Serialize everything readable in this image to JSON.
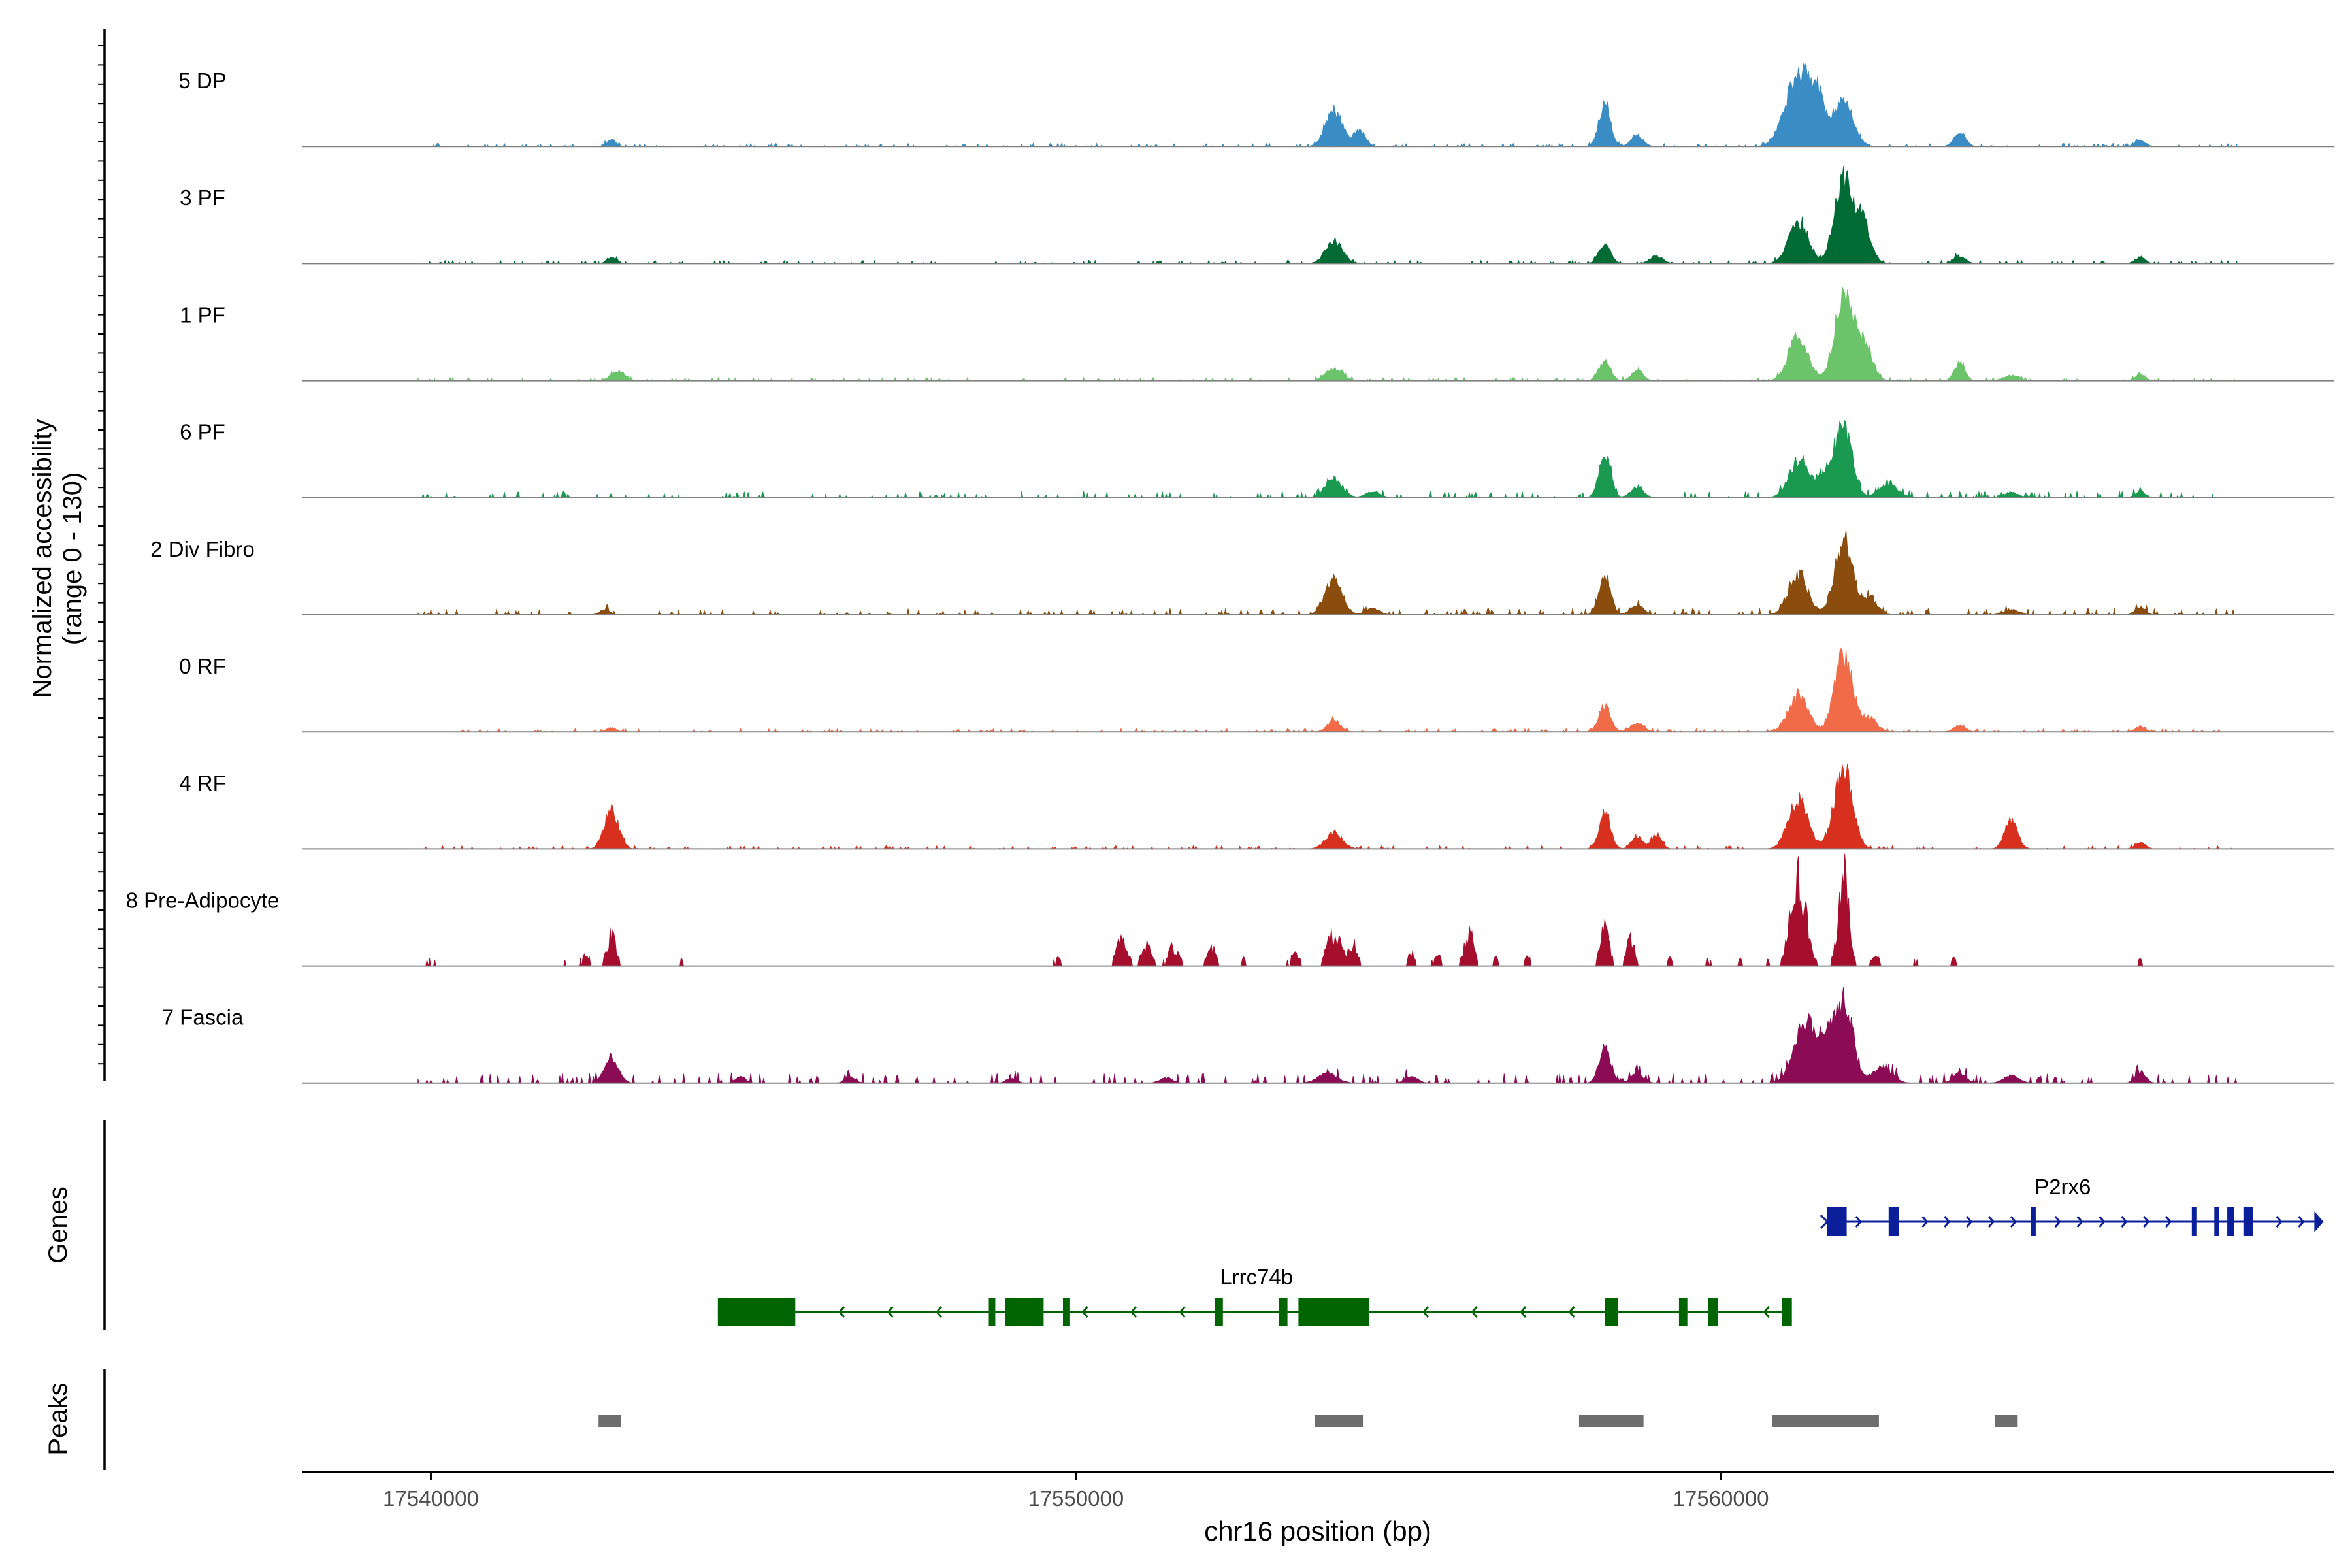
{
  "chart_data": {
    "type": "area",
    "title": "",
    "xlabel": "chr16 position (bp)",
    "ylabel_line1": "Normalized accessibility",
    "ylabel_line2": "(range 0 - 130)",
    "ylim": [
      0,
      130
    ],
    "xlim": [
      17538000,
      17569500
    ],
    "x_ticks": [
      17540000,
      17550000,
      17560000
    ],
    "x_tick_labels": [
      "17540000",
      "17550000",
      "17560000"
    ],
    "panel_labels": {
      "genes": "Genes",
      "peaks": "Peaks"
    },
    "tracks": [
      {
        "name": "5 DP",
        "color": "#3a8dc4",
        "noise": 1.0,
        "peaks": [
          [
            17542800,
            10,
            70
          ],
          [
            17554000,
            55,
            130
          ],
          [
            17554400,
            25,
            90
          ],
          [
            17558200,
            65,
            90
          ],
          [
            17558700,
            18,
            90
          ],
          [
            17561200,
            105,
            200
          ],
          [
            17561500,
            60,
            120
          ],
          [
            17561900,
            70,
            150
          ],
          [
            17563700,
            20,
            90
          ],
          [
            17566500,
            10,
            80
          ]
        ]
      },
      {
        "name": "3 PF",
        "color": "#006b35",
        "noise": 1.0,
        "peaks": [
          [
            17542800,
            10,
            70
          ],
          [
            17554000,
            35,
            130
          ],
          [
            17558200,
            30,
            90
          ],
          [
            17559000,
            12,
            100
          ],
          [
            17561200,
            65,
            150
          ],
          [
            17561900,
            125,
            140
          ],
          [
            17562200,
            60,
            120
          ],
          [
            17563700,
            12,
            90
          ],
          [
            17566500,
            10,
            80
          ]
        ]
      },
      {
        "name": "1 PF",
        "color": "#6cc46a",
        "noise": 1.0,
        "peaks": [
          [
            17542900,
            15,
            110
          ],
          [
            17554000,
            18,
            130
          ],
          [
            17558200,
            30,
            90
          ],
          [
            17558700,
            15,
            90
          ],
          [
            17561200,
            70,
            150
          ],
          [
            17561900,
            125,
            140
          ],
          [
            17562200,
            60,
            130
          ],
          [
            17563700,
            28,
            80
          ],
          [
            17564500,
            8,
            120
          ],
          [
            17566500,
            10,
            80
          ]
        ]
      },
      {
        "name": "6 PF",
        "color": "#1a9950",
        "noise": 2.0,
        "peaks": [
          [
            17554000,
            30,
            130
          ],
          [
            17554600,
            10,
            110
          ],
          [
            17558200,
            65,
            90
          ],
          [
            17558700,
            16,
            100
          ],
          [
            17561200,
            55,
            150
          ],
          [
            17561900,
            115,
            130
          ],
          [
            17561600,
            35,
            120
          ],
          [
            17562600,
            20,
            150
          ],
          [
            17564500,
            8,
            120
          ],
          [
            17566500,
            10,
            80
          ]
        ]
      },
      {
        "name": "2 Div Fibro",
        "color": "#8b4d0e",
        "noise": 2.0,
        "peaks": [
          [
            17542700,
            8,
            80
          ],
          [
            17554000,
            55,
            130
          ],
          [
            17554600,
            10,
            110
          ],
          [
            17558200,
            60,
            90
          ],
          [
            17558700,
            15,
            100
          ],
          [
            17561200,
            60,
            150
          ],
          [
            17561900,
            110,
            140
          ],
          [
            17562300,
            25,
            120
          ],
          [
            17564500,
            8,
            120
          ],
          [
            17566500,
            12,
            80
          ]
        ]
      },
      {
        "name": "0 RF",
        "color": "#f16b48",
        "noise": 1.0,
        "peaks": [
          [
            17542800,
            6,
            80
          ],
          [
            17554000,
            18,
            100
          ],
          [
            17558200,
            40,
            90
          ],
          [
            17558700,
            14,
            100
          ],
          [
            17561200,
            55,
            150
          ],
          [
            17561900,
            115,
            140
          ],
          [
            17562300,
            20,
            120
          ],
          [
            17563700,
            10,
            90
          ],
          [
            17566500,
            8,
            80
          ]
        ]
      },
      {
        "name": "4 RF",
        "color": "#d7301f",
        "noise": 1.0,
        "peaks": [
          [
            17542800,
            60,
            110
          ],
          [
            17554000,
            25,
            130
          ],
          [
            17558200,
            55,
            90
          ],
          [
            17558700,
            20,
            80
          ],
          [
            17559000,
            20,
            80
          ],
          [
            17561200,
            75,
            150
          ],
          [
            17561900,
            125,
            140
          ],
          [
            17564500,
            45,
            100
          ],
          [
            17566500,
            10,
            80
          ]
        ]
      },
      {
        "name": "8 Pre-Adipocyte",
        "color": "#a50f2d",
        "noise": 0.0,
        "spiky": true,
        "peaks": [
          [
            17540000,
            12,
            80
          ],
          [
            17542100,
            12,
            60
          ],
          [
            17542400,
            18,
            80
          ],
          [
            17542800,
            55,
            70
          ],
          [
            17543900,
            12,
            60
          ],
          [
            17549700,
            15,
            60
          ],
          [
            17550700,
            45,
            90
          ],
          [
            17551100,
            35,
            80
          ],
          [
            17551500,
            32,
            90
          ],
          [
            17552100,
            30,
            80
          ],
          [
            17552600,
            12,
            60
          ],
          [
            17553400,
            20,
            90
          ],
          [
            17554000,
            55,
            110
          ],
          [
            17554300,
            35,
            70
          ],
          [
            17555200,
            22,
            60
          ],
          [
            17555600,
            20,
            60
          ],
          [
            17556100,
            55,
            80
          ],
          [
            17556500,
            15,
            60
          ],
          [
            17557000,
            16,
            60
          ],
          [
            17558200,
            65,
            70
          ],
          [
            17558600,
            45,
            70
          ],
          [
            17559200,
            15,
            50
          ],
          [
            17559800,
            12,
            50
          ],
          [
            17560300,
            12,
            50
          ],
          [
            17560700,
            12,
            50
          ],
          [
            17561200,
            145,
            120
          ],
          [
            17561900,
            165,
            80
          ],
          [
            17562400,
            20,
            60
          ],
          [
            17563000,
            12,
            60
          ],
          [
            17563600,
            12,
            60
          ],
          [
            17564800,
            12,
            50
          ],
          [
            17566500,
            12,
            60
          ]
        ]
      },
      {
        "name": "7 Fascia",
        "color": "#8c0b55",
        "noise": 3.0,
        "peaks": [
          [
            17542800,
            40,
            110
          ],
          [
            17544800,
            10,
            80
          ],
          [
            17546500,
            10,
            80
          ],
          [
            17549000,
            8,
            80
          ],
          [
            17551400,
            8,
            100
          ],
          [
            17553900,
            15,
            150
          ],
          [
            17555200,
            10,
            100
          ],
          [
            17558200,
            55,
            90
          ],
          [
            17558700,
            15,
            100
          ],
          [
            17561300,
            90,
            170
          ],
          [
            17561900,
            125,
            140
          ],
          [
            17561600,
            50,
            120
          ],
          [
            17562500,
            25,
            150
          ],
          [
            17563700,
            15,
            100
          ],
          [
            17564500,
            12,
            120
          ],
          [
            17566500,
            18,
            80
          ]
        ]
      }
    ],
    "genes": [
      {
        "name": "P2rx6",
        "strand": "+",
        "color": "#0b1f9a",
        "start": 17561650,
        "end": 17569200,
        "exons": [
          [
            17561650,
            17561950,
            "thick"
          ],
          [
            17562600,
            17562760,
            "thin"
          ],
          [
            17564800,
            17564880,
            "thin"
          ],
          [
            17567300,
            17567360,
            "thin"
          ],
          [
            17567650,
            17567720,
            "thin"
          ],
          [
            17567850,
            17567950,
            "thin"
          ],
          [
            17568100,
            17568250,
            "thin"
          ]
        ],
        "label_at": 17565300
      },
      {
        "name": "Lrrc74b",
        "strand": "-",
        "color": "#006400",
        "start": 17544450,
        "end": 17561050,
        "exons": [
          [
            17544450,
            17545650,
            "thick"
          ],
          [
            17548650,
            17548750,
            "thin"
          ],
          [
            17548900,
            17549500,
            "thick"
          ],
          [
            17549800,
            17549900,
            "thin"
          ],
          [
            17552150,
            17552280,
            "thin"
          ],
          [
            17553150,
            17553280,
            "thin"
          ],
          [
            17553450,
            17554550,
            "thick"
          ],
          [
            17558200,
            17558400,
            "thin"
          ],
          [
            17559350,
            17559480,
            "thin"
          ],
          [
            17559800,
            17559950,
            "thin"
          ],
          [
            17560950,
            17561100,
            "thin"
          ]
        ],
        "label_at": 17552800
      }
    ],
    "peaks_track": {
      "color": "#6e6e6e",
      "regions": [
        [
          17542600,
          17542950
        ],
        [
          17553700,
          17554450
        ],
        [
          17557800,
          17558800
        ],
        [
          17560800,
          17562450
        ],
        [
          17564250,
          17564600
        ]
      ]
    }
  }
}
